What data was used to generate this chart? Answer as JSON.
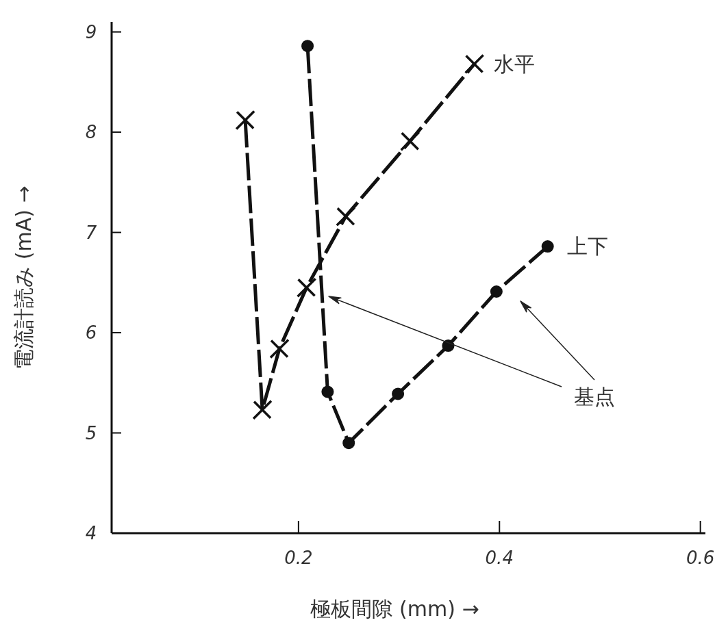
{
  "chart_data": {
    "type": "line",
    "xlabel": "極板間隙 (mm) →",
    "ylabel": "電流計読み (mA) →",
    "xlim": [
      0.014,
      0.605
    ],
    "ylim": [
      4,
      9.1
    ],
    "xticks": [
      0.2,
      0.4,
      0.6
    ],
    "yticks": [
      4,
      5,
      6,
      7,
      8,
      9
    ],
    "series": [
      {
        "name": "水平",
        "color": "#111111",
        "marker": "cross",
        "line_style": "dashed",
        "x": [
          0.147,
          0.164,
          0.181,
          0.208,
          0.247,
          0.311,
          0.375
        ],
        "values": [
          8.12,
          5.23,
          5.84,
          6.45,
          7.16,
          7.91,
          8.68
        ]
      },
      {
        "name": "上下",
        "color": "#111111",
        "marker": "circle",
        "line_style": "dashed",
        "x": [
          0.209,
          0.229,
          0.25,
          0.299,
          0.349,
          0.397,
          0.448
        ],
        "values": [
          8.86,
          5.41,
          4.9,
          5.39,
          5.87,
          6.41,
          6.86
        ]
      }
    ],
    "annotations": [
      "基点"
    ]
  }
}
